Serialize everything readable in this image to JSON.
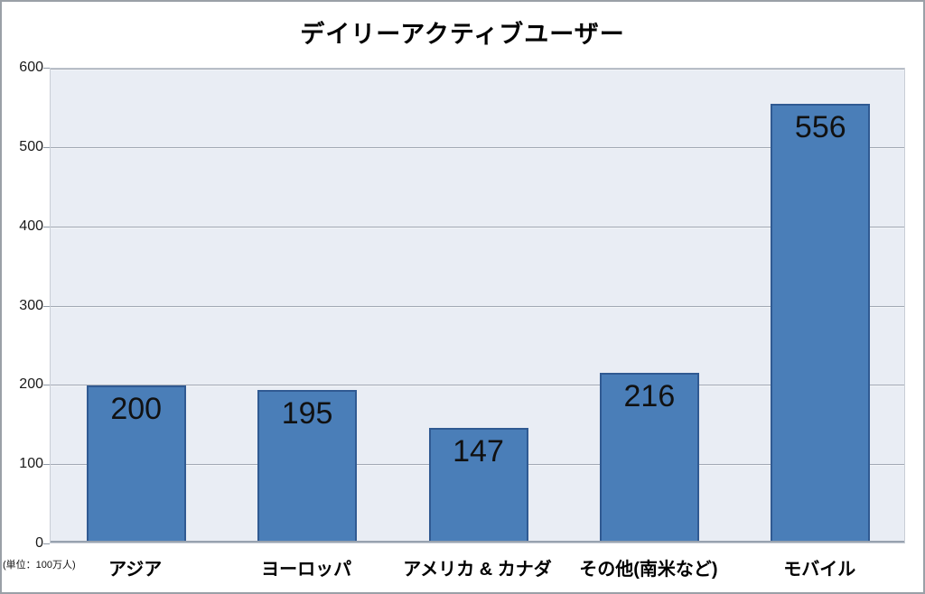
{
  "chart_data": {
    "type": "bar",
    "title": "デイリーアクティブユーザー",
    "unit_note": "(単位：100万人)",
    "categories": [
      "アジア",
      "ヨーロッパ",
      "アメリカ & カナダ",
      "その他(南米など)",
      "モバイル"
    ],
    "values": [
      200,
      195,
      147,
      216,
      556
    ],
    "xlabel": "",
    "ylabel": "",
    "ylim": [
      0,
      600
    ],
    "yticks": [
      0,
      100,
      200,
      300,
      400,
      500,
      600
    ],
    "grid": true,
    "legend_position": "none",
    "data_labels": "inside-end",
    "colors": {
      "bar_fill": "#4a7eb8",
      "bar_border": "#305a92",
      "plot_bg": "#e9edf4",
      "gridline": "#a2a9b4",
      "gridline_highlight": "#f3f5f8",
      "axis_line": "#98a2af",
      "tick": "#8e98a5",
      "text": "#000000",
      "outer_border": "#9aa0a7",
      "plot_border": "#c9ced6"
    }
  }
}
